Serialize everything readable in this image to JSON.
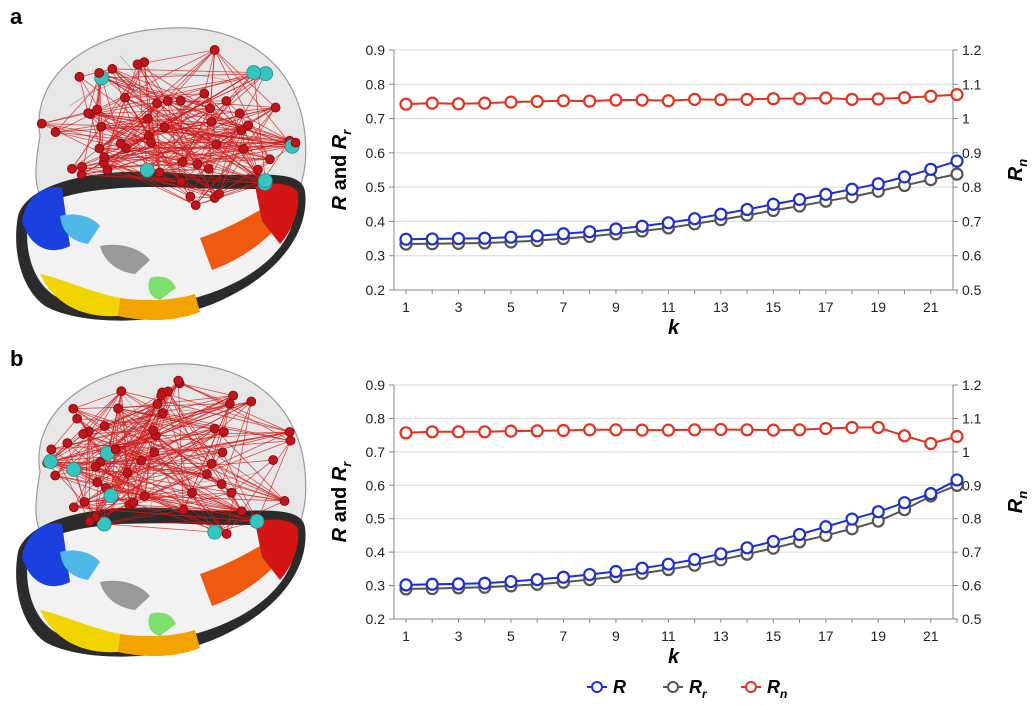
{
  "panels": [
    {
      "letter": "a"
    },
    {
      "letter": "b"
    }
  ],
  "colors": {
    "R": "#1f2fd6",
    "Rr": "#555555",
    "Rn": "#e8301e",
    "grid": "#d9d9d9",
    "axis": "#888888",
    "node_red": "#c0141a",
    "node_cyan": "#36c4c0",
    "edge": "#d01a1a"
  },
  "legend": {
    "R": {
      "main": "R",
      "sub": ""
    },
    "Rr": {
      "main": "R",
      "sub": "r"
    },
    "Rn": {
      "main": "R",
      "sub": "n"
    }
  },
  "chart_data": [
    {
      "type": "line",
      "x": [
        1,
        2,
        3,
        4,
        5,
        6,
        7,
        8,
        9,
        10,
        11,
        12,
        13,
        14,
        15,
        16,
        17,
        18,
        19,
        20,
        21,
        22
      ],
      "xticks": [
        1,
        3,
        5,
        7,
        9,
        11,
        13,
        15,
        17,
        19,
        21
      ],
      "xlabel": "k",
      "ylabel_left": {
        "main": "R",
        "mid": " and ",
        "end": "R",
        "sub": "r"
      },
      "ylabel_right": {
        "main": "R",
        "sub": "n"
      },
      "ylim_left": [
        0.2,
        0.9
      ],
      "yticks_left": [
        "0.2",
        "0.3",
        "0.4",
        "0.5",
        "0.6",
        "0.7",
        "0.8",
        "0.9"
      ],
      "ylim_right": [
        0.5,
        1.2
      ],
      "yticks_right": [
        "0.5",
        "0.6",
        "0.7",
        "0.8",
        "0.9",
        "1",
        "1.1",
        "1.2"
      ],
      "grid": true,
      "series": [
        {
          "key": "R",
          "axis": "left",
          "values": [
            0.348,
            0.349,
            0.35,
            0.351,
            0.354,
            0.358,
            0.364,
            0.37,
            0.378,
            0.386,
            0.396,
            0.408,
            0.421,
            0.435,
            0.45,
            0.464,
            0.479,
            0.494,
            0.51,
            0.53,
            0.552,
            0.576
          ]
        },
        {
          "key": "Rr",
          "axis": "left",
          "values": [
            0.334,
            0.335,
            0.336,
            0.337,
            0.34,
            0.344,
            0.35,
            0.356,
            0.364,
            0.372,
            0.381,
            0.393,
            0.405,
            0.418,
            0.432,
            0.445,
            0.459,
            0.472,
            0.488,
            0.505,
            0.522,
            0.538
          ]
        },
        {
          "key": "Rn",
          "axis": "right",
          "values": [
            1.042,
            1.045,
            1.043,
            1.045,
            1.048,
            1.05,
            1.052,
            1.051,
            1.054,
            1.054,
            1.052,
            1.056,
            1.055,
            1.056,
            1.058,
            1.058,
            1.06,
            1.056,
            1.057,
            1.061,
            1.065,
            1.07
          ]
        }
      ]
    },
    {
      "type": "line",
      "x": [
        1,
        2,
        3,
        4,
        5,
        6,
        7,
        8,
        9,
        10,
        11,
        12,
        13,
        14,
        15,
        16,
        17,
        18,
        19,
        20,
        21,
        22
      ],
      "xticks": [
        1,
        3,
        5,
        7,
        9,
        11,
        13,
        15,
        17,
        19,
        21
      ],
      "xlabel": "k",
      "ylabel_left": {
        "main": "R",
        "mid": " and ",
        "end": "R",
        "sub": "r"
      },
      "ylabel_right": {
        "main": "R",
        "sub": "n"
      },
      "ylim_left": [
        0.2,
        0.9
      ],
      "yticks_left": [
        "0.2",
        "0.3",
        "0.4",
        "0.5",
        "0.6",
        "0.7",
        "0.8",
        "0.9"
      ],
      "ylim_right": [
        0.5,
        1.2
      ],
      "yticks_right": [
        "0.5",
        "0.6",
        "0.7",
        "0.8",
        "0.9",
        "1",
        "1.1",
        "1.2"
      ],
      "grid": true,
      "series": [
        {
          "key": "R",
          "axis": "left",
          "values": [
            0.302,
            0.304,
            0.305,
            0.307,
            0.312,
            0.318,
            0.325,
            0.333,
            0.342,
            0.352,
            0.364,
            0.378,
            0.395,
            0.413,
            0.432,
            0.453,
            0.476,
            0.499,
            0.521,
            0.548,
            0.575,
            0.616
          ]
        },
        {
          "key": "Rr",
          "axis": "left",
          "values": [
            0.29,
            0.291,
            0.293,
            0.295,
            0.299,
            0.304,
            0.31,
            0.318,
            0.327,
            0.337,
            0.348,
            0.361,
            0.377,
            0.394,
            0.412,
            0.431,
            0.45,
            0.47,
            0.493,
            0.527,
            0.568,
            0.6
          ]
        },
        {
          "key": "Rn",
          "axis": "right",
          "values": [
            1.057,
            1.06,
            1.06,
            1.06,
            1.062,
            1.063,
            1.064,
            1.066,
            1.066,
            1.065,
            1.065,
            1.066,
            1.067,
            1.066,
            1.065,
            1.066,
            1.07,
            1.073,
            1.073,
            1.048,
            1.025,
            1.046
          ]
        }
      ]
    }
  ]
}
